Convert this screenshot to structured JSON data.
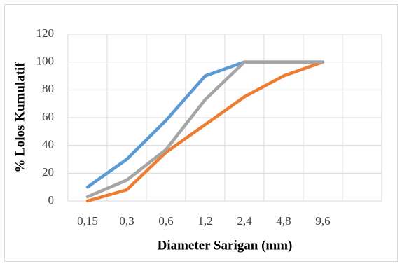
{
  "chart_data": {
    "type": "line",
    "x_label": "Diameter Sarigan (mm)",
    "y_label": "% Lolos Kumulatif",
    "categories": [
      "0,15",
      "0,3",
      "0,6",
      "1,2",
      "2,4",
      "4,8",
      "9,6",
      null
    ],
    "series": [
      {
        "color": "#5b9bd5",
        "values": [
          10,
          30,
          58,
          90,
          100,
          100,
          100,
          null
        ]
      },
      {
        "color": "#ed7d31",
        "values": [
          0,
          8,
          35,
          55,
          75,
          90,
          100,
          null
        ]
      },
      {
        "color": "#a5a5a5",
        "values": [
          3,
          15,
          37,
          73,
          100,
          100,
          100,
          null
        ]
      }
    ],
    "ylim": [
      0,
      120
    ],
    "yticks": [
      0,
      20,
      40,
      60,
      80,
      100,
      120
    ],
    "grid": true
  }
}
